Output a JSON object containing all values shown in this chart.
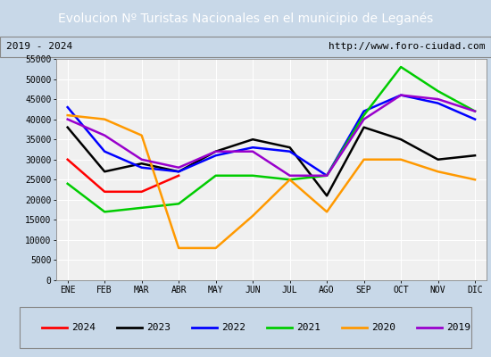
{
  "title": "Evolucion Nº Turistas Nacionales en el municipio de Leganés",
  "subtitle_left": "2019 - 2024",
  "subtitle_right": "http://www.foro-ciudad.com",
  "x_labels": [
    "ENE",
    "FEB",
    "MAR",
    "ABR",
    "MAY",
    "JUN",
    "JUL",
    "AGO",
    "SEP",
    "OCT",
    "NOV",
    "DIC"
  ],
  "ylim": [
    0,
    55000
  ],
  "yticks": [
    0,
    5000,
    10000,
    15000,
    20000,
    25000,
    30000,
    35000,
    40000,
    45000,
    50000,
    55000
  ],
  "series": {
    "2024": {
      "color": "#ff0000",
      "values": [
        30000,
        22000,
        22000,
        26000,
        null,
        null,
        null,
        null,
        null,
        null,
        null,
        null
      ]
    },
    "2023": {
      "color": "#000000",
      "values": [
        38000,
        27000,
        29000,
        27000,
        32000,
        35000,
        33000,
        21000,
        38000,
        35000,
        30000,
        31000
      ]
    },
    "2022": {
      "color": "#0000ff",
      "values": [
        43000,
        32000,
        28000,
        27000,
        31000,
        33000,
        32000,
        26000,
        42000,
        46000,
        44000,
        40000
      ]
    },
    "2021": {
      "color": "#00cc00",
      "values": [
        24000,
        17000,
        18000,
        19000,
        26000,
        26000,
        25000,
        26000,
        41000,
        53000,
        47000,
        42000
      ]
    },
    "2020": {
      "color": "#ff9900",
      "values": [
        41000,
        40000,
        36000,
        8000,
        8000,
        16000,
        25000,
        17000,
        30000,
        30000,
        27000,
        25000
      ]
    },
    "2019": {
      "color": "#9900cc",
      "values": [
        40000,
        36000,
        30000,
        28000,
        32000,
        32000,
        26000,
        26000,
        40000,
        46000,
        45000,
        42000
      ]
    }
  },
  "title_bg_color": "#4a7bc4",
  "title_color": "white",
  "title_fontsize": 10,
  "plot_bg_color": "#f0f0f0",
  "grid_color": "white",
  "outer_bg_color": "#c8d8e8",
  "subtitle_fontsize": 8,
  "legend_order": [
    "2024",
    "2023",
    "2022",
    "2021",
    "2020",
    "2019"
  ],
  "tick_fontsize": 7,
  "legend_fontsize": 8
}
